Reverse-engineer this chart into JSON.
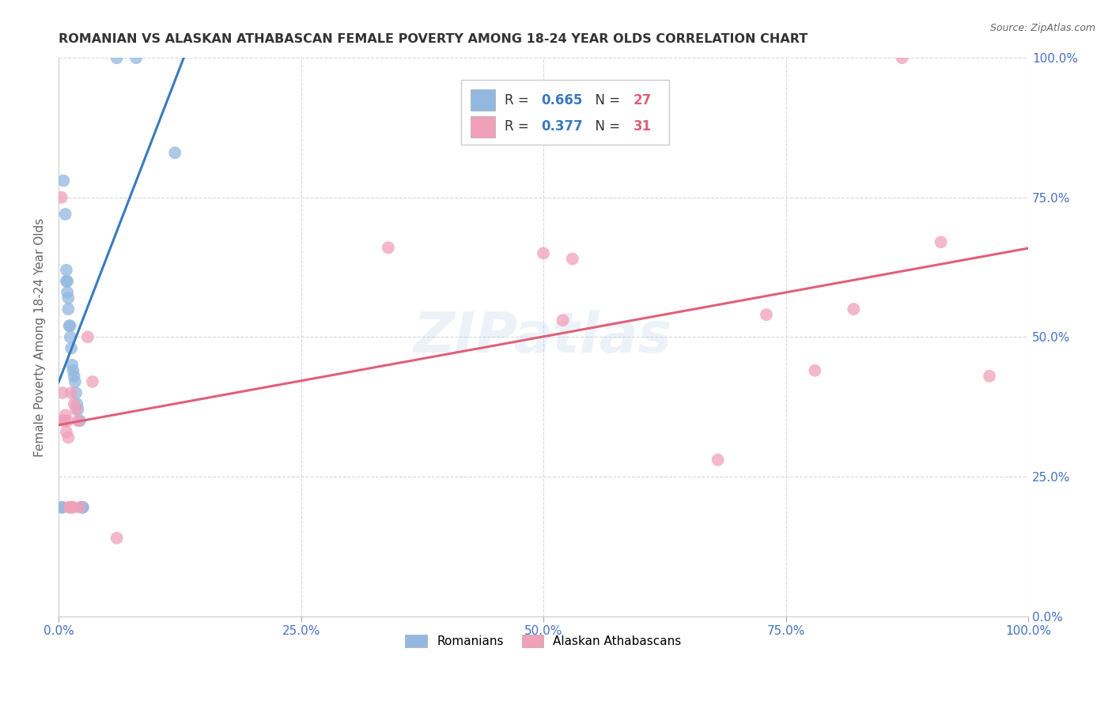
{
  "title": "ROMANIAN VS ALASKAN ATHABASCAN FEMALE POVERTY AMONG 18-24 YEAR OLDS CORRELATION CHART",
  "source": "Source: ZipAtlas.com",
  "ylabel": "Female Poverty Among 18-24 Year Olds",
  "xlim": [
    0,
    1.0
  ],
  "ylim": [
    0,
    1.0
  ],
  "xticks": [
    0.0,
    0.25,
    0.5,
    0.75,
    1.0
  ],
  "yticks": [
    0.0,
    0.25,
    0.5,
    0.75,
    1.0
  ],
  "xtick_labels": [
    "0.0%",
    "25.0%",
    "50.0%",
    "75.0%",
    "100.0%"
  ],
  "ytick_labels": [
    "0.0%",
    "25.0%",
    "50.0%",
    "75.0%",
    "100.0%"
  ],
  "romanian_color": "#92b8e0",
  "alaskan_color": "#f0a0b8",
  "romanian_line_color": "#3a7abf",
  "alaskan_line_color": "#e0607a",
  "watermark_text": "ZIPatlas",
  "romanian_R": "0.665",
  "romanian_N": "27",
  "alaskan_R": "0.377",
  "alaskan_N": "31",
  "tick_color": "#4472c4",
  "ylabel_color": "#666666",
  "title_color": "#333333",
  "source_color": "#666666",
  "romanian_points": [
    [
      0.003,
      0.195
    ],
    [
      0.004,
      0.195
    ],
    [
      0.005,
      0.78
    ],
    [
      0.007,
      0.72
    ],
    [
      0.008,
      0.6
    ],
    [
      0.008,
      0.62
    ],
    [
      0.009,
      0.58
    ],
    [
      0.009,
      0.6
    ],
    [
      0.01,
      0.55
    ],
    [
      0.01,
      0.57
    ],
    [
      0.011,
      0.52
    ],
    [
      0.012,
      0.5
    ],
    [
      0.012,
      0.52
    ],
    [
      0.013,
      0.48
    ],
    [
      0.014,
      0.45
    ],
    [
      0.015,
      0.44
    ],
    [
      0.016,
      0.43
    ],
    [
      0.017,
      0.42
    ],
    [
      0.018,
      0.4
    ],
    [
      0.019,
      0.38
    ],
    [
      0.02,
      0.37
    ],
    [
      0.022,
      0.35
    ],
    [
      0.025,
      0.195
    ],
    [
      0.025,
      0.195
    ],
    [
      0.06,
      1.0
    ],
    [
      0.08,
      1.0
    ],
    [
      0.12,
      0.83
    ]
  ],
  "alaskan_points": [
    [
      0.003,
      0.75
    ],
    [
      0.004,
      0.4
    ],
    [
      0.005,
      0.35
    ],
    [
      0.006,
      0.35
    ],
    [
      0.007,
      0.36
    ],
    [
      0.008,
      0.33
    ],
    [
      0.009,
      0.35
    ],
    [
      0.01,
      0.32
    ],
    [
      0.011,
      0.195
    ],
    [
      0.012,
      0.195
    ],
    [
      0.013,
      0.4
    ],
    [
      0.014,
      0.195
    ],
    [
      0.015,
      0.195
    ],
    [
      0.016,
      0.38
    ],
    [
      0.018,
      0.37
    ],
    [
      0.02,
      0.35
    ],
    [
      0.022,
      0.195
    ],
    [
      0.03,
      0.5
    ],
    [
      0.035,
      0.42
    ],
    [
      0.06,
      0.14
    ],
    [
      0.34,
      0.66
    ],
    [
      0.5,
      0.65
    ],
    [
      0.52,
      0.53
    ],
    [
      0.53,
      0.64
    ],
    [
      0.68,
      0.28
    ],
    [
      0.73,
      0.54
    ],
    [
      0.78,
      0.44
    ],
    [
      0.82,
      0.55
    ],
    [
      0.87,
      1.0
    ],
    [
      0.91,
      0.67
    ],
    [
      0.96,
      0.43
    ]
  ]
}
